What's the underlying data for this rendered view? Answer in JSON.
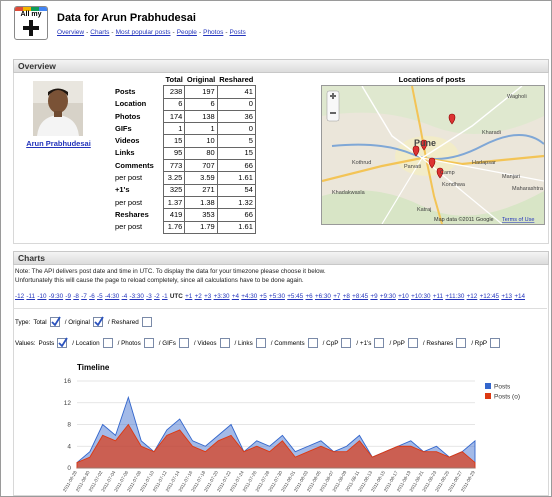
{
  "header": {
    "logo": "All my",
    "title": "Data for Arun Prabhudesai",
    "separator": "-",
    "nav": [
      "Overview",
      "Charts",
      "Most popular posts",
      "People",
      "Photos",
      "Posts"
    ]
  },
  "overview": {
    "title": "Overview",
    "profile_name": "Arun Prabhudesai",
    "table": {
      "columns": [
        "Total",
        "Original",
        "Reshared"
      ],
      "rows": [
        {
          "label": "Posts",
          "values": [
            238,
            197,
            41
          ]
        },
        {
          "label": "Location",
          "values": [
            6,
            6,
            0
          ]
        },
        {
          "label": "Photos",
          "values": [
            174,
            138,
            36
          ]
        },
        {
          "label": "GIFs",
          "values": [
            1,
            1,
            0
          ]
        },
        {
          "label": "Videos",
          "values": [
            15,
            10,
            5
          ]
        },
        {
          "label": "Links",
          "values": [
            95,
            80,
            15
          ]
        },
        {
          "label": "Comments",
          "values": [
            773,
            707,
            66
          ]
        },
        {
          "label": "per post",
          "values": [
            3.25,
            3.59,
            1.61
          ]
        },
        {
          "label": "+1's",
          "values": [
            325,
            271,
            54
          ]
        },
        {
          "label": "per post",
          "values": [
            1.37,
            1.38,
            1.32
          ]
        },
        {
          "label": "Reshares",
          "values": [
            419,
            353,
            66
          ]
        },
        {
          "label": "per post",
          "values": [
            1.76,
            1.79,
            1.61
          ]
        }
      ]
    },
    "map": {
      "title": "Locations of posts",
      "labels": [
        "Wagholi",
        "Pune",
        "Kharadi",
        "Hadapsar",
        "Camp",
        "Parvati",
        "Kothrud",
        "Kondhwa",
        "Katraj",
        "Manjari",
        "Khadakwasla",
        "Maharashtra"
      ],
      "attribution": "Map data ©2011 Google",
      "terms": "Terms of Use"
    }
  },
  "charts": {
    "title": "Charts",
    "note": [
      "Note: The API delivers post date and time in UTC. To display the data for your timezone please choose it below.",
      "Unfortunately this will cause the page to reload completely, since all calculations have to be done again."
    ],
    "timezones": [
      "-12",
      "-11",
      "-10",
      "-9:30",
      "-9",
      "-8",
      "-7",
      "-6",
      "-5",
      "-4:30",
      "-4",
      "-3:30",
      "-3",
      "-2",
      "-1",
      "UTC",
      "+1",
      "+2",
      "+3",
      "+3:30",
      "+4",
      "+4:30",
      "+5",
      "+5:30",
      "+5:45",
      "+6",
      "+6:30",
      "+7",
      "+8",
      "+8:45",
      "+9",
      "+9:30",
      "+10",
      "+10:30",
      "+11",
      "+11:30",
      "+12",
      "+12:45",
      "+13",
      "+14"
    ],
    "current_timezone": "UTC",
    "type": {
      "label": "Type:",
      "options": [
        {
          "label": "Total",
          "checked": true
        },
        {
          "label": "/ Original",
          "checked": true
        },
        {
          "label": "/ Reshared",
          "checked": false
        }
      ]
    },
    "values": {
      "label": "Values:",
      "options": [
        {
          "label": "Posts",
          "checked": true
        },
        {
          "label": "/ Location",
          "checked": false
        },
        {
          "label": "/ Photos",
          "checked": false
        },
        {
          "label": "/ GIFs",
          "checked": false
        },
        {
          "label": "/ Videos",
          "checked": false
        },
        {
          "label": "/ Links",
          "checked": false
        },
        {
          "label": "/ Comments",
          "checked": false
        },
        {
          "label": "/ CpP",
          "checked": false
        },
        {
          "label": "/ +1's",
          "checked": false
        },
        {
          "label": "/ PpP",
          "checked": false
        },
        {
          "label": "/ Reshares",
          "checked": false
        },
        {
          "label": "/ RpP",
          "checked": false
        }
      ]
    }
  },
  "chart_data": {
    "type": "area",
    "title": "Timeline",
    "categories": [
      "2011-06-28",
      "2011-06-30",
      "2011-07-02",
      "2011-07-04",
      "2011-07-06",
      "2011-07-08",
      "2011-07-10",
      "2011-07-12",
      "2011-07-14",
      "2011-07-16",
      "2011-07-18",
      "2011-07-20",
      "2011-07-22",
      "2011-07-24",
      "2011-07-26",
      "2011-07-28",
      "2011-07-30",
      "2011-08-01",
      "2011-08-03",
      "2011-08-05",
      "2011-08-07",
      "2011-08-09",
      "2011-08-11",
      "2011-08-13",
      "2011-08-15",
      "2011-08-17",
      "2011-08-19",
      "2011-08-21",
      "2011-08-23",
      "2011-08-25",
      "2011-08-27",
      "2011-08-29"
    ],
    "series": [
      {
        "name": "Posts",
        "color": "#3366cc",
        "values": [
          1,
          3,
          8,
          6,
          13,
          5,
          3,
          7,
          9,
          5,
          4,
          6,
          8,
          3,
          5,
          4,
          6,
          3,
          4,
          5,
          3,
          4,
          6,
          2,
          3,
          4,
          5,
          3,
          4,
          2,
          3,
          5
        ]
      },
      {
        "name": "Posts (o)",
        "color": "#dc3912",
        "values": [
          1,
          2,
          6,
          5,
          8,
          4,
          3,
          6,
          7,
          4,
          3,
          5,
          6,
          3,
          4,
          3,
          5,
          2,
          3,
          4,
          3,
          3,
          5,
          2,
          3,
          4,
          4,
          3,
          3,
          2,
          3,
          1
        ]
      }
    ],
    "ylim": [
      0,
      16
    ],
    "yticks": [
      0,
      4,
      8,
      12,
      16
    ],
    "grid": true,
    "legend": "right"
  }
}
